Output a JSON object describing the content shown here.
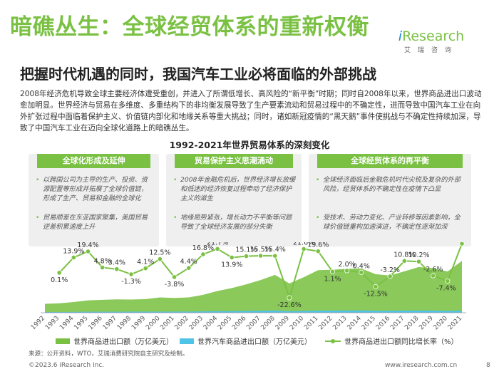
{
  "title": "暗礁丛生：全球经贸体系的重新权衡",
  "logo": {
    "i": "i",
    "brand": "Research",
    "sub": "艾瑞咨询"
  },
  "subtitle": "把握时代机遇的同时，我国汽车工业必将面临的外部挑战",
  "body": "2008年经济危机导致全球主要经济体遭受重创，并进入了所谓低增长、高风险的“新平衡”时期；同时自2008年以来，世界商品进出口波动愈加明显。世界经济与贸易在多维度、多重结构下的非均衡发展导致了生产要素流动和贸易过程中的不确定性，进而导致中国汽车工业在向外扩张过程中面临着保护主义、价值链内部化和地缘关系等重大挑战；同时，诸如新冠疫情的“黑天鹅”事件使挑战与不确定性持续加深，导致了中国汽车工业在迈向全球化道路上的暗礁丛生。",
  "panels": [
    {
      "header": "全球化形成及延伸",
      "bullets": [
        "以跨国公司为主导的生产、投资、资源配置等形成并拓展了全球价值链，形成了生产、贸易和金融的全球化",
        "贸易顺差在东亚国家聚集，美国贸易逆差积累速度上升"
      ]
    },
    {
      "header": "贸易保护主义思潮涌动",
      "bullets": [
        "2008年金融危机后，世界经济增长放缓和低迷的经济恢复过程牵动了经济保护主义的滋生",
        "地缘局势紧张，增长动力不平衡等问题导致了全球经济发展的部分失衡"
      ]
    },
    {
      "header": "全球经贸体系的再平衡",
      "bullets": [
        "全球经济面临后金融危机时代尖锐及复杂的外部风险，经贸体系的不确定性在疫情下凸显",
        "受技术、劳动力变化、产业转移等因素影响，全球价值链重构加速演进，不确定性逐渐加深"
      ]
    }
  ],
  "chart_data": {
    "type": "area",
    "title": "1992-2021年世界贸易体系的深刻变化",
    "categories": [
      "1992",
      "1993",
      "1994",
      "1995",
      "1996",
      "1997",
      "1998",
      "1999",
      "2000",
      "2001",
      "2002",
      "2003",
      "2004",
      "2005",
      "2006",
      "2007",
      "2008",
      "2009",
      "2010",
      "2011",
      "2012",
      "2013",
      "2014",
      "2015",
      "2016",
      "2017",
      "2018",
      "2019",
      "2020",
      "2021"
    ],
    "series": [
      {
        "name": "世界商品进出口额（万亿美元）",
        "kind": "area",
        "color": "#7ac143",
        "values": [
          7.6,
          8.0,
          9.1,
          10.5,
          11.0,
          11.4,
          11.2,
          11.6,
          13.0,
          12.6,
          13.0,
          15.2,
          18.5,
          21.0,
          24.2,
          27.8,
          32.2,
          24.9,
          30.2,
          36.2,
          36.6,
          37.4,
          37.6,
          32.8,
          31.7,
          35.2,
          38.9,
          37.8,
          35.1,
          44.1
        ]
      },
      {
        "name": "世界汽车商品进出口额（万亿美元）",
        "kind": "area",
        "color": "#4fc3e8",
        "values": [
          0.6,
          0.6,
          0.7,
          0.8,
          0.8,
          0.8,
          0.9,
          0.9,
          0.9,
          0.9,
          1.0,
          1.1,
          1.3,
          1.4,
          1.5,
          1.7,
          1.8,
          1.3,
          1.5,
          1.8,
          1.8,
          1.9,
          1.9,
          1.7,
          1.7,
          1.8,
          1.9,
          1.8,
          1.6,
          1.8
        ]
      },
      {
        "name": "世界商品进出口额同比增长率（%）",
        "kind": "line",
        "color": "#7ac143",
        "values": [
          null,
          0.1,
          13.9,
          19.4,
          4.8,
          3.4,
          -1.3,
          4.1,
          12.5,
          -3.8,
          4.4,
          16.8,
          21.7,
          13.9,
          15.1,
          15.5,
          15.4,
          -22.6,
          21.6,
          19.6,
          1.1,
          2.0,
          0.4,
          -12.5,
          -3.2,
          10.8,
          10.2,
          -2.6,
          -7.4,
          26.4
        ],
        "labels": [
          "",
          "0.1%",
          "13.9%",
          "19.4%",
          "4.8%",
          "3.4%",
          "-1.3%",
          "4.1%",
          "12.5%",
          "-3.8%",
          "4.4%",
          "16.8%",
          "21.7%",
          "13.9%",
          "15.1%",
          "15.5%",
          "15.4%",
          "-22.6%",
          "21.6%",
          "19.6%",
          "1.1%",
          "2.0%",
          "0.4%",
          "-12.5%",
          "-3.2%",
          "10.8%",
          "10.2%",
          "-2.6%",
          "-7.4%",
          "26.4%"
        ]
      }
    ],
    "area_ylim": [
      0,
      60
    ],
    "line_ylim": [
      -30,
      30
    ],
    "legend_position": "bottom"
  },
  "source": "来源：公开资料，WTO，艾瑞消费研究院自主研究及绘制。",
  "footer": {
    "left": "©2023.6 iResearch Inc.",
    "right": "www.iresearch.com.cn",
    "page": "8"
  }
}
